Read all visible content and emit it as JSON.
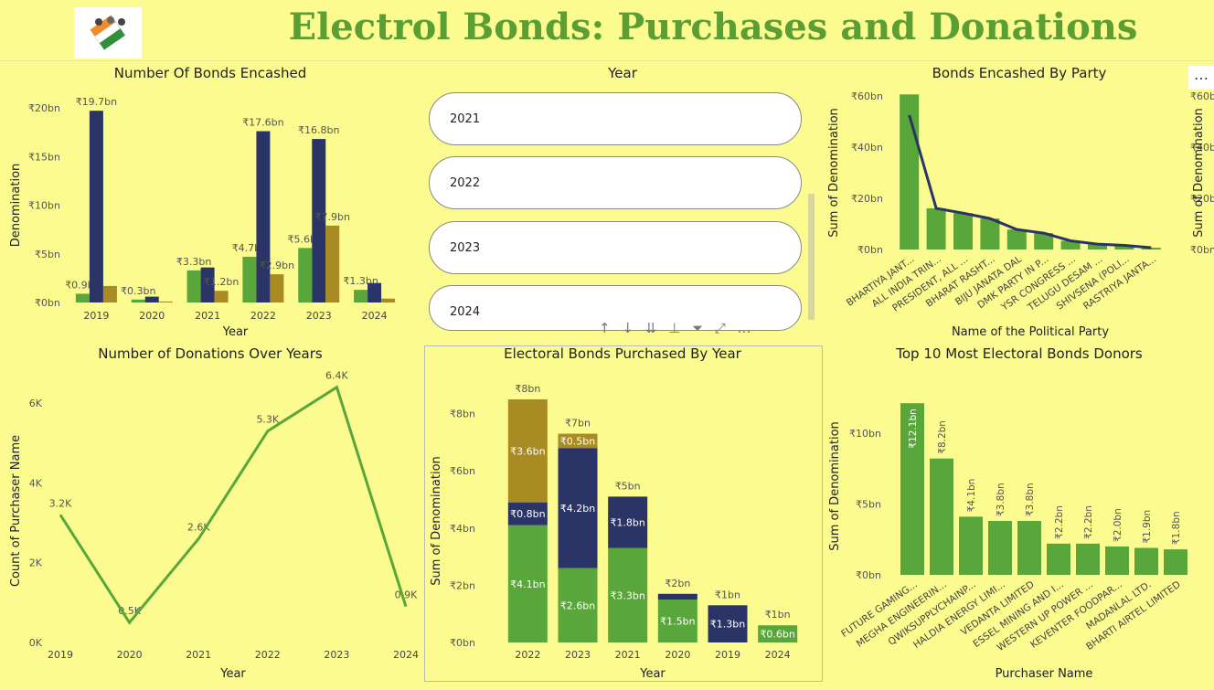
{
  "header": {
    "title": "Electrol Bonds: Purchases and Donations"
  },
  "colors": {
    "green": "#59a63a",
    "navy": "#2b3466",
    "gold": "#a88b22",
    "line": "#2b3466",
    "title": "#5a9e34"
  },
  "slicer": {
    "title": "Year",
    "items": [
      "2021",
      "2022",
      "2023",
      "2024"
    ]
  },
  "toolbar": {
    "icons": [
      "↑",
      "↓",
      "⇊",
      "⊥",
      "⏷",
      "⤢",
      "…"
    ]
  },
  "panel_more": "…",
  "chart_data": [
    {
      "id": "bonds-encashed",
      "type": "bar",
      "title": "Number Of Bonds Encashed",
      "xlabel": "Year",
      "ylabel": "Denomination",
      "categories": [
        "2019",
        "2020",
        "2021",
        "2022",
        "2023",
        "2024"
      ],
      "yticks": [
        "₹0bn",
        "₹5bn",
        "₹10bn",
        "₹15bn",
        "₹20bn"
      ],
      "ylim": [
        0,
        20
      ],
      "series": [
        {
          "values": [
            0.9,
            0.3,
            3.3,
            4.7,
            5.6,
            1.3
          ],
          "labels": [
            "₹0.9bn",
            "₹0.3bn",
            "₹3.3bn",
            "₹4.7bn",
            "₹5.6bn",
            "₹1.3bn"
          ],
          "color": "#59a63a"
        },
        {
          "values": [
            19.7,
            0.6,
            3.6,
            17.6,
            16.8,
            2.0
          ],
          "labels": [
            "₹19.7bn",
            "",
            "",
            "₹17.6bn",
            "₹16.8bn",
            ""
          ],
          "color": "#2b3466"
        },
        {
          "values": [
            1.7,
            0.1,
            1.2,
            2.9,
            7.9,
            0.4
          ],
          "labels": [
            "",
            "",
            "₹1.2bn",
            "₹2.9bn",
            "₹7.9bn",
            ""
          ],
          "color": "#a88b22"
        }
      ]
    },
    {
      "id": "bonds-by-party",
      "type": "bar",
      "title": "Bonds Encashed By Party",
      "xlabel": "Name of the Political Party",
      "ylabel": "Sum of Denomination",
      "y2label": "Sum of Denomination",
      "categories": [
        "BHARTIYA JANT...",
        "ALL INDIA TRIN...",
        "PRESIDENT, ALL ...",
        "BHARAT RASHT...",
        "BIJU JANATA DAL",
        "DMK PARTY IN P...",
        "YSR CONGRESS ...",
        "TELUGU DESAM ...",
        "SHIVSENA (POLI...",
        "RASTRIYA JANTA..."
      ],
      "values": [
        60.6,
        16.1,
        14.2,
        12.1,
        7.8,
        6.4,
        3.4,
        2.1,
        1.6,
        0.7
      ],
      "line_values": [
        52.5,
        16.1,
        14.2,
        12.1,
        7.8,
        6.4,
        3.4,
        2.1,
        1.6,
        0.7
      ],
      "yticks": [
        "₹0bn",
        "₹20bn",
        "₹40bn",
        "₹60bn"
      ],
      "y2ticks": [
        "₹0bn",
        "₹20bn",
        "₹40bn",
        "₹60bn"
      ],
      "ylim": [
        0,
        60
      ]
    },
    {
      "id": "donations-over-years",
      "type": "line",
      "title": "Number of Donations Over Years",
      "xlabel": "Year",
      "ylabel": "Count of Purchaser Name",
      "categories": [
        "2019",
        "2020",
        "2021",
        "2022",
        "2023",
        "2024"
      ],
      "values": [
        3.2,
        0.5,
        2.6,
        5.3,
        6.4,
        0.9
      ],
      "labels": [
        "3.2K",
        "0.5K",
        "2.6K",
        "5.3K",
        "6.4K",
        "0.9K"
      ],
      "yticks": [
        "0K",
        "2K",
        "4K",
        "6K"
      ],
      "ylim": [
        0,
        6.6
      ]
    },
    {
      "id": "bonds-purchased-by-year",
      "type": "bar",
      "title": "Electoral Bonds Purchased By Year",
      "xlabel": "Year",
      "ylabel": "Sum of Denomination",
      "categories": [
        "2022",
        "2023",
        "2021",
        "2020",
        "2019",
        "2024"
      ],
      "totals": [
        "₹8bn",
        "₹7bn",
        "₹5bn",
        "₹2bn",
        "₹1bn",
        "₹1bn"
      ],
      "series": [
        {
          "values": [
            4.1,
            2.6,
            3.3,
            1.5,
            0,
            0.6
          ],
          "labels": [
            "₹4.1bn",
            "₹2.6bn",
            "₹3.3bn",
            "₹1.5bn",
            "",
            "₹0.6bn"
          ],
          "color": "#59a63a"
        },
        {
          "values": [
            0.8,
            4.2,
            1.8,
            0.2,
            1.3,
            0
          ],
          "labels": [
            "₹0.8bn",
            "₹4.2bn",
            "₹1.8bn",
            "",
            "₹1.3bn",
            ""
          ],
          "color": "#2b3466"
        },
        {
          "values": [
            3.6,
            0.5,
            0,
            0,
            0,
            0
          ],
          "labels": [
            "₹3.6bn",
            "₹0.5bn",
            "",
            "",
            "",
            ""
          ],
          "color": "#a88b22"
        }
      ],
      "yticks": [
        "₹0bn",
        "₹2bn",
        "₹4bn",
        "₹6bn",
        "₹8bn"
      ],
      "ylim": [
        0,
        8
      ]
    },
    {
      "id": "top-donors",
      "type": "bar",
      "title": "Top 10 Most Electoral Bonds Donors",
      "xlabel": "Purchaser Name",
      "ylabel": "Sum of Denomination",
      "categories": [
        "FUTURE GAMING...",
        "MEGHA ENGINEERIN...",
        "QWIKSUPPLYCHAINP...",
        "HALDIA ENERGY LIMI...",
        "VEDANTA LIMITED",
        "ESSEL MINING AND I...",
        "WESTERN UP POWER ...",
        "KEVENTER FOODPAR...",
        "MADANLAL LTD.",
        "BHARTI AIRTEL LIMITED"
      ],
      "values": [
        12.1,
        8.2,
        4.1,
        3.8,
        3.8,
        2.2,
        2.2,
        2.0,
        1.9,
        1.8
      ],
      "labels": [
        "₹12.1bn",
        "₹8.2bn",
        "₹4.1bn",
        "₹3.8bn",
        "₹3.8bn",
        "₹2.2bn",
        "₹2.2bn",
        "₹2.0bn",
        "₹1.9bn",
        "₹1.8bn"
      ],
      "yticks": [
        "₹0bn",
        "₹5bn",
        "₹10bn"
      ],
      "ylim": [
        0,
        12.5
      ]
    }
  ]
}
